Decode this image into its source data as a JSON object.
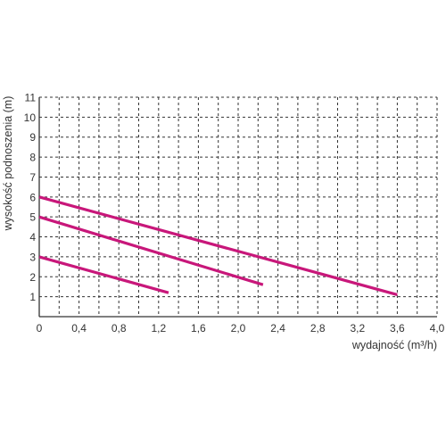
{
  "chart_data": {
    "type": "line",
    "xlabel": "wydajność (m³/h)",
    "ylabel": "wysokość podnoszenia (m)",
    "xlim": [
      0,
      4.0
    ],
    "ylim": [
      0,
      11
    ],
    "x_ticks": [
      "0",
      "0,4",
      "0,8",
      "1,2",
      "1,6",
      "2,0",
      "2,4",
      "2,8",
      "3,2",
      "3,6",
      "4,0"
    ],
    "y_ticks": [
      "1",
      "2",
      "3",
      "4",
      "5",
      "6",
      "7",
      "8",
      "9",
      "10",
      "11"
    ],
    "grid": "dashed",
    "series": [
      {
        "x": [
          0,
          1.3
        ],
        "y": [
          3.0,
          1.2
        ]
      },
      {
        "x": [
          0,
          2.25
        ],
        "y": [
          5.0,
          1.6
        ]
      },
      {
        "x": [
          0,
          3.6
        ],
        "y": [
          6.0,
          1.1
        ]
      }
    ],
    "colors": {
      "line": "#c8177a",
      "grid": "#333333",
      "axis": "#333333"
    }
  }
}
